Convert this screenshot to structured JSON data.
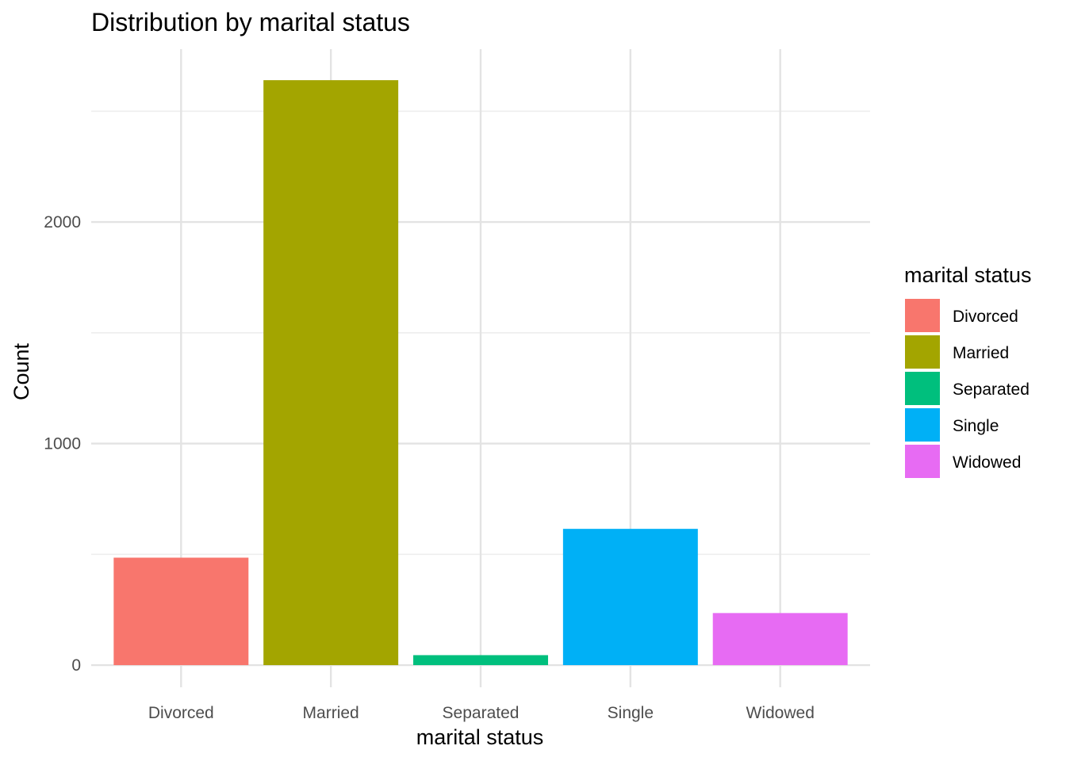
{
  "chart_data": {
    "type": "bar",
    "title": "Distribution by marital status",
    "xlabel": "marital status",
    "ylabel": "Count",
    "categories": [
      "Divorced",
      "Married",
      "Separated",
      "Single",
      "Widowed"
    ],
    "values": [
      485,
      2640,
      45,
      615,
      235
    ],
    "colors": [
      "#F8766D",
      "#A3A500",
      "#00BF7D",
      "#00B0F6",
      "#E76BF3"
    ],
    "ylim": [
      -100,
      2780
    ],
    "yticks": [
      0,
      1000,
      2000
    ],
    "ytick_labels": [
      "0",
      "1000",
      "2000"
    ],
    "grid": true,
    "legend": {
      "title": "marital status",
      "position": "right",
      "items": [
        "Divorced",
        "Married",
        "Separated",
        "Single",
        "Widowed"
      ]
    }
  }
}
